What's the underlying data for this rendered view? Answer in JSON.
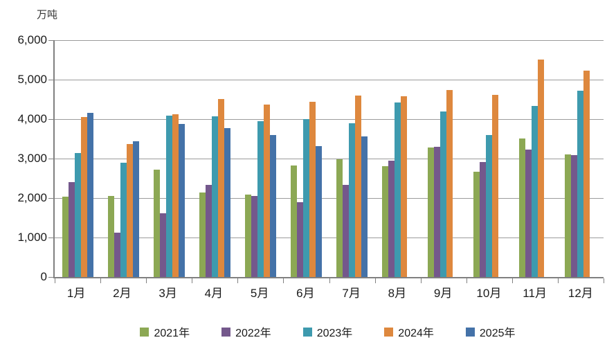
{
  "chart_data": {
    "type": "bar",
    "title": "",
    "unit": "万吨",
    "xlabel": "",
    "ylabel": "万吨",
    "ylim": [
      0,
      6000
    ],
    "ytick_interval": 1000,
    "ytick_labels_top_to_bottom": [
      "6,000",
      "5,000",
      "4,000",
      "3,000",
      "2,000",
      "1,000",
      "0"
    ],
    "grid": true,
    "legend_position": "bottom",
    "categories": [
      "1月",
      "2月",
      "3月",
      "4月",
      "5月",
      "6月",
      "7月",
      "8月",
      "9月",
      "10月",
      "11月",
      "12月"
    ],
    "series": [
      {
        "name": "2021年",
        "color": "#8CA854",
        "values": [
          2030,
          2060,
          2720,
          2140,
          2080,
          2830,
          2990,
          2800,
          3280,
          2670,
          3500,
          3100
        ]
      },
      {
        "name": "2022年",
        "color": "#74588C",
        "values": [
          2400,
          1120,
          1620,
          2340,
          2050,
          1890,
          2340,
          2950,
          3300,
          2910,
          3230,
          3080
        ]
      },
      {
        "name": "2023年",
        "color": "#3E9AAE",
        "values": [
          3140,
          2890,
          4090,
          4070,
          3950,
          4000,
          3890,
          4420,
          4200,
          3600,
          4340,
          4720
        ]
      },
      {
        "name": "2024年",
        "color": "#DE883E",
        "values": [
          4060,
          3370,
          4130,
          4500,
          4370,
          4440,
          4600,
          4580,
          4740,
          4620,
          5500,
          5230
        ]
      },
      {
        "name": "2025年",
        "color": "#4472A8",
        "values": [
          4160,
          3430,
          3870,
          3780,
          3590,
          3310,
          3560,
          null,
          null,
          null,
          null,
          null
        ]
      }
    ],
    "colors": {
      "gridline": "#9b9b9b",
      "axis": "#808080",
      "text": "#1a1a1a"
    }
  }
}
